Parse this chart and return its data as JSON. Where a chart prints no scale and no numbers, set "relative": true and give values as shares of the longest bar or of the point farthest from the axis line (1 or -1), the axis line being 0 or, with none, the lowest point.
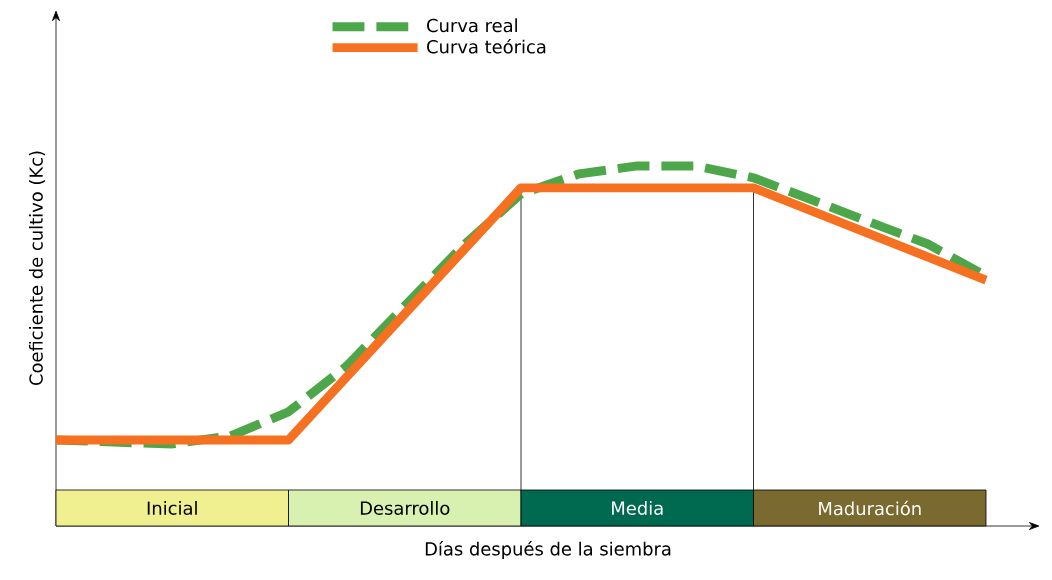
{
  "chart_data": {
    "type": "line",
    "relative": true,
    "xlabel": "Días después de la siembra",
    "ylabel": "Coeficiente de cultivo (Kc)",
    "legend": "top",
    "categories": [
      null,
      null,
      null,
      null,
      null,
      null,
      null,
      null,
      null,
      null,
      null,
      null,
      null,
      null,
      null,
      null,
      null
    ],
    "series": [
      {
        "name": "Curva real",
        "color": "#4ea64a",
        "line_style": "dashed",
        "values": [
          0.239,
          0.233,
          0.228,
          0.25,
          0.317,
          0.444,
          0.611,
          0.778,
          0.922,
          0.978,
          1.0,
          1.0,
          0.967,
          0.906,
          0.844,
          0.783,
          0.694
        ]
      },
      {
        "name": "Curva teórica",
        "color": "#f57020",
        "line_style": "solid",
        "values": [
          0.239,
          0.239,
          0.239,
          0.239,
          0.239,
          0.414,
          0.589,
          0.764,
          0.939,
          0.939,
          0.939,
          0.939,
          0.939,
          0.875,
          0.811,
          0.747,
          0.683
        ]
      }
    ],
    "annotations": [
      "Inicial",
      "Desarrollo",
      "Media",
      "Maduración"
    ]
  }
}
